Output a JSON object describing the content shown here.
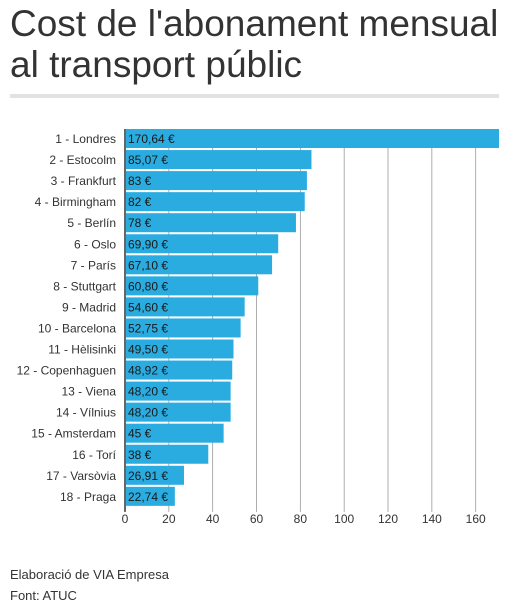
{
  "title": "Cost de l'abonament mensual al transport públic",
  "credit": "Elaboració de VIA Empresa",
  "source": "Font: ATUC",
  "colors": {
    "bar": "#2aace0",
    "grid": "#999999",
    "axis": "#333333",
    "bar_label": "#1a1a1a"
  },
  "chart_data": {
    "type": "bar",
    "orientation": "horizontal",
    "categories": [
      "1 - Londres",
      "2 - Estocolm",
      "3 - Frankfurt",
      "4 - Birmingham",
      "5 - Berlín",
      "6 - Oslo",
      "7 - París",
      "8 - Stuttgart",
      "9 - Madrid",
      "10 - Barcelona",
      "11 - Hèlisinki",
      "12 - Copenhaguen",
      "13 - Viena",
      "14 - Vílnius",
      "15 - Amsterdam",
      "16 - Torí",
      "17 - Varsòvia",
      "18 - Praga"
    ],
    "values": [
      170.64,
      85.07,
      83,
      82,
      78,
      69.9,
      67.1,
      60.8,
      54.6,
      52.75,
      49.5,
      48.92,
      48.2,
      48.2,
      45,
      38,
      26.91,
      22.74
    ],
    "value_labels": [
      "170,64 €",
      "85,07 €",
      "83 €",
      "82 €",
      "78 €",
      "69,90 €",
      "67,10 €",
      "60,80 €",
      "54,60 €",
      "52,75 €",
      "49,50 €",
      "48,92 €",
      "48,20 €",
      "48,20 €",
      "45 €",
      "38 €",
      "26,91 €",
      "22,74 €"
    ],
    "xticks": [
      0,
      20,
      40,
      60,
      80,
      100,
      120,
      140,
      160
    ],
    "xlim": [
      0,
      170.64
    ],
    "grid": true
  }
}
